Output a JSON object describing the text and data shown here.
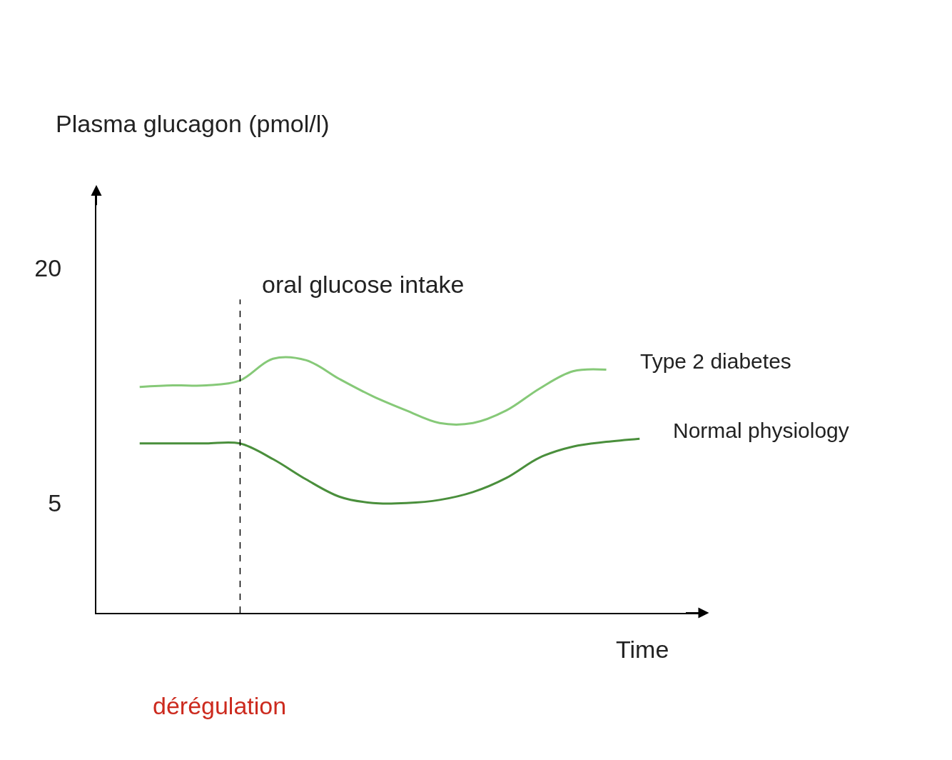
{
  "chart_data": {
    "type": "line",
    "ylabel": "Plasma glucagon (pmol/l)",
    "xlabel": "Time",
    "categories": [
      null,
      null,
      null,
      null,
      null,
      null,
      null,
      null,
      null,
      null,
      null,
      null,
      null,
      null,
      null,
      null
    ],
    "series": [
      {
        "name": "Type 2 diabetes",
        "color": "#86c978",
        "values": [
          12.4,
          12.5,
          12.5,
          12.8,
          14.2,
          14.1,
          12.9,
          11.8,
          10.9,
          10.1,
          10.1,
          10.9,
          12.3,
          13.4,
          13.5,
          null
        ]
      },
      {
        "name": "Normal physiology",
        "color": "#4a8f3c",
        "values": [
          8.8,
          8.8,
          8.8,
          8.8,
          7.8,
          6.5,
          5.4,
          5.0,
          5.0,
          5.2,
          5.7,
          6.6,
          7.9,
          8.6,
          8.9,
          9.1
        ]
      }
    ],
    "ylim": [
      -2,
      25
    ],
    "yticks": [
      5,
      20
    ],
    "tick_labels": "y",
    "grid": false,
    "legend": false,
    "marker": "none",
    "line_style": "solid",
    "annotations": [
      "oral glucose intake",
      "dérégulation"
    ]
  }
}
